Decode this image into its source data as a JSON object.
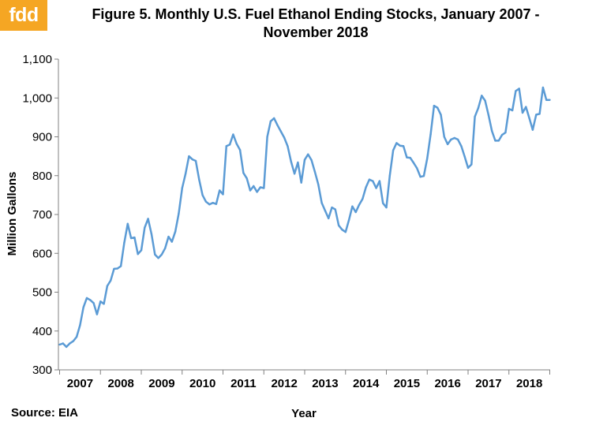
{
  "logo": {
    "text": "fdd",
    "color": "#f5a623"
  },
  "title_line1": "Figure  5. Monthly  U.S. Fuel  Ethanol  Ending  Stocks, January  2007 -",
  "title_line2": "November  2018",
  "source": "Source: EIA",
  "chart_data": {
    "type": "line",
    "title": "Figure 5. Monthly U.S. Fuel Ethanol Ending Stocks, January 2007 - November 2018",
    "xlabel": "Year",
    "ylabel": "Million Gallons",
    "ylim": [
      300,
      1100
    ],
    "yticks": [
      300,
      400,
      500,
      600,
      700,
      800,
      900,
      1000,
      1100
    ],
    "ytick_labels": [
      "300",
      "400",
      "500",
      "600",
      "700",
      "800",
      "900",
      "1,000",
      "1,100"
    ],
    "xtick_labels": [
      "2007",
      "2008",
      "2009",
      "2010",
      "2011",
      "2012",
      "2013",
      "2014",
      "2015",
      "2016",
      "2017",
      "2018"
    ],
    "grid": false,
    "line_color": "#5b9bd5",
    "x_start": "2007-01",
    "x_end": "2018-11",
    "series": [
      {
        "values": [
          365,
          368,
          359,
          368,
          374,
          385,
          415,
          461,
          485,
          480,
          472,
          443,
          476,
          470,
          516,
          530,
          560,
          561,
          567,
          627,
          676,
          639,
          641,
          598,
          608,
          666,
          689,
          650,
          597,
          588,
          597,
          613,
          643,
          630,
          656,
          702,
          768,
          805,
          850,
          842,
          838,
          790,
          750,
          733,
          726,
          730,
          727,
          762,
          752,
          876,
          880,
          906,
          882,
          866,
          807,
          793,
          762,
          773,
          758,
          770,
          768,
          900,
          940,
          948,
          930,
          914,
          898,
          876,
          836,
          805,
          834,
          782,
          841,
          855,
          840,
          810,
          777,
          730,
          710,
          690,
          718,
          713,
          672,
          661,
          655,
          686,
          721,
          706,
          725,
          740,
          770,
          790,
          786,
          768,
          786,
          729,
          718,
          800,
          865,
          884,
          877,
          876,
          847,
          846,
          833,
          819,
          797,
          799,
          845,
          907,
          980,
          975,
          957,
          900,
          881,
          893,
          897,
          893,
          876,
          849,
          820,
          829,
          952,
          974,
          1006,
          993,
          956,
          915,
          890,
          890,
          905,
          911,
          972,
          968,
          1018,
          1024,
          962,
          977,
          948,
          918,
          957,
          959,
          1027,
          995,
          995
        ]
      }
    ]
  }
}
